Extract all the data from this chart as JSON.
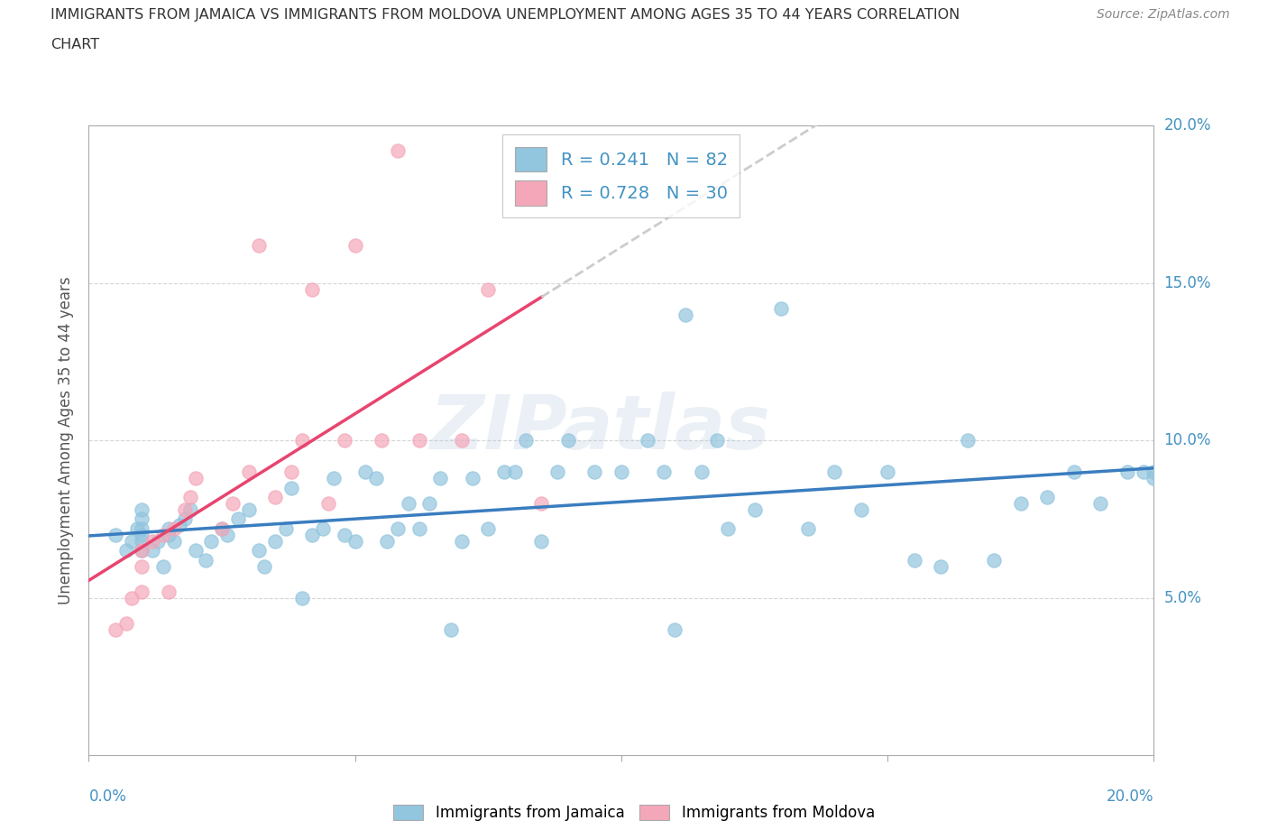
{
  "title_line1": "IMMIGRANTS FROM JAMAICA VS IMMIGRANTS FROM MOLDOVA UNEMPLOYMENT AMONG AGES 35 TO 44 YEARS CORRELATION",
  "title_line2": "CHART",
  "source": "Source: ZipAtlas.com",
  "ylabel": "Unemployment Among Ages 35 to 44 years",
  "xlim": [
    0.0,
    0.2
  ],
  "ylim": [
    0.0,
    0.2
  ],
  "yticks": [
    0.05,
    0.1,
    0.15,
    0.2
  ],
  "ytick_labels": [
    "5.0%",
    "10.0%",
    "15.0%",
    "20.0%"
  ],
  "xticks": [
    0.0,
    0.05,
    0.1,
    0.15,
    0.2
  ],
  "color_jamaica": "#92c5de",
  "color_moldova": "#f4a7b9",
  "color_line_jamaica": "#3a7dbf",
  "color_line_moldova": "#e8446e",
  "color_line_moldova_extrap": "#cccccc",
  "R_jamaica": 0.241,
  "N_jamaica": 82,
  "R_moldova": 0.728,
  "N_moldova": 30,
  "watermark": "ZIPatlas",
  "legend_jamaica": "Immigrants from Jamaica",
  "legend_moldova": "Immigrants from Moldova",
  "jamaica_x": [
    0.005,
    0.007,
    0.008,
    0.009,
    0.01,
    0.01,
    0.01,
    0.01,
    0.01,
    0.01,
    0.012,
    0.013,
    0.014,
    0.015,
    0.015,
    0.016,
    0.017,
    0.018,
    0.019,
    0.02,
    0.022,
    0.023,
    0.025,
    0.026,
    0.028,
    0.03,
    0.032,
    0.033,
    0.035,
    0.037,
    0.038,
    0.04,
    0.042,
    0.044,
    0.046,
    0.048,
    0.05,
    0.052,
    0.054,
    0.056,
    0.058,
    0.06,
    0.062,
    0.064,
    0.066,
    0.068,
    0.07,
    0.072,
    0.075,
    0.078,
    0.08,
    0.082,
    0.085,
    0.088,
    0.09,
    0.095,
    0.1,
    0.105,
    0.108,
    0.11,
    0.112,
    0.115,
    0.118,
    0.12,
    0.125,
    0.13,
    0.135,
    0.14,
    0.145,
    0.15,
    0.155,
    0.16,
    0.165,
    0.17,
    0.175,
    0.18,
    0.185,
    0.19,
    0.195,
    0.198,
    0.2,
    0.2
  ],
  "jamaica_y": [
    0.07,
    0.065,
    0.068,
    0.072,
    0.07,
    0.065,
    0.068,
    0.072,
    0.075,
    0.078,
    0.065,
    0.068,
    0.06,
    0.07,
    0.072,
    0.068,
    0.073,
    0.075,
    0.078,
    0.065,
    0.062,
    0.068,
    0.072,
    0.07,
    0.075,
    0.078,
    0.065,
    0.06,
    0.068,
    0.072,
    0.085,
    0.05,
    0.07,
    0.072,
    0.088,
    0.07,
    0.068,
    0.09,
    0.088,
    0.068,
    0.072,
    0.08,
    0.072,
    0.08,
    0.088,
    0.04,
    0.068,
    0.088,
    0.072,
    0.09,
    0.09,
    0.1,
    0.068,
    0.09,
    0.1,
    0.09,
    0.09,
    0.1,
    0.09,
    0.04,
    0.14,
    0.09,
    0.1,
    0.072,
    0.078,
    0.142,
    0.072,
    0.09,
    0.078,
    0.09,
    0.062,
    0.06,
    0.1,
    0.062,
    0.08,
    0.082,
    0.09,
    0.08,
    0.09,
    0.09,
    0.09,
    0.088
  ],
  "moldova_x": [
    0.005,
    0.007,
    0.008,
    0.01,
    0.01,
    0.01,
    0.012,
    0.014,
    0.015,
    0.016,
    0.018,
    0.019,
    0.02,
    0.025,
    0.027,
    0.03,
    0.032,
    0.035,
    0.038,
    0.04,
    0.042,
    0.045,
    0.048,
    0.05,
    0.055,
    0.058,
    0.062,
    0.07,
    0.075,
    0.085
  ],
  "moldova_y": [
    0.04,
    0.042,
    0.05,
    0.052,
    0.06,
    0.065,
    0.068,
    0.07,
    0.052,
    0.072,
    0.078,
    0.082,
    0.088,
    0.072,
    0.08,
    0.09,
    0.162,
    0.082,
    0.09,
    0.1,
    0.148,
    0.08,
    0.1,
    0.162,
    0.1,
    0.192,
    0.1,
    0.1,
    0.148,
    0.08
  ]
}
